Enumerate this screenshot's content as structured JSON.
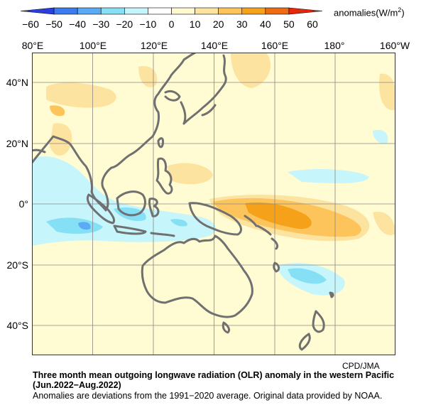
{
  "colorbar": {
    "unit_prefix": "anomalies(W/m",
    "unit_sup": "2",
    "unit_suffix": ")",
    "ticks": [
      "−60",
      "−50",
      "−40",
      "−30",
      "−20",
      "−10",
      "0",
      "10",
      "20",
      "30",
      "40",
      "50",
      "60"
    ],
    "colors": [
      "#2a3fe0",
      "#3a7cf0",
      "#5aaaf5",
      "#86e0f5",
      "#c6f5fb",
      "#ffffff",
      "#fff9d0",
      "#fde3a0",
      "#fcc45a",
      "#f5a21a",
      "#f06a10",
      "#e8260c"
    ]
  },
  "map": {
    "lon_labels": [
      "80°E",
      "100°E",
      "120°E",
      "140°E",
      "160°E",
      "180°",
      "160°W"
    ],
    "lat_labels": [
      "40°N",
      "20°N",
      "0°",
      "20°S",
      "40°S"
    ],
    "base_color": "#fffbd2",
    "coast_color": "#707070",
    "grid_color": "#888888"
  },
  "credit": "CPD/JMA",
  "caption": {
    "line1": "Three month mean outgoing longwave radiation (OLR) anomaly in the western Pacific",
    "line2": "(Jun.2022−Aug.2022)",
    "line3": "Anomalies are deviations from the 1991−2020 average. Original data provided by NOAA."
  }
}
